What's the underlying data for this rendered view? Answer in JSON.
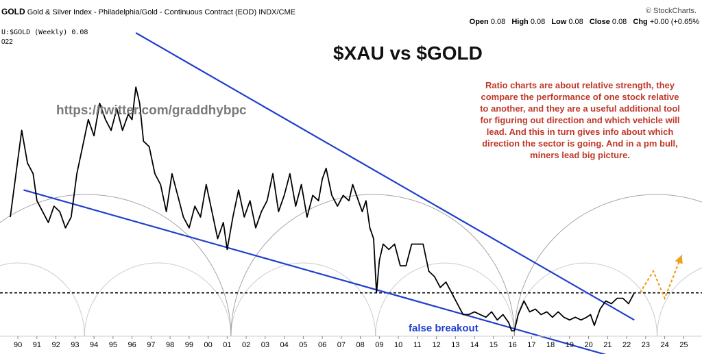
{
  "header": {
    "symbol": "GOLD",
    "description": "Gold & Silver Index - Philadelphia/Gold - Continuous Contract (EOD) INDX/CME",
    "brand": "© StockCharts.",
    "open_label": "Open",
    "open": "0.08",
    "high_label": "High",
    "high": "0.08",
    "low_label": "Low",
    "low": "0.08",
    "close_label": "Close",
    "close": "0.08",
    "chg_label": "Chg",
    "chg": "+0.00 (+0.65%",
    "series_line": "U:$GOLD (Weekly) 0.08",
    "date_fragment": "022"
  },
  "annotations": {
    "title": "$XAU vs $GOLD",
    "handle": "https://twitter.com/graddhybpc",
    "note": "Ratio charts are about relative strength, they compare the performance of one stock relative to another, and they are a useful additional tool for figuring out direction and which vehicle will lead. And this in turn gives info about which direction the sector is going. And in a pm bull, miners lead big picture.",
    "false_breakout": "false breakout"
  },
  "colors": {
    "price": "#000000",
    "trendline": "#1f3fcf",
    "cycle_arcs": "#9a9a9a",
    "note_text": "#c0392b",
    "projection": "#f0a020",
    "dashed_level": "#000000"
  },
  "chart_data": {
    "type": "line",
    "x_tick_labels": [
      "90",
      "91",
      "92",
      "93",
      "94",
      "95",
      "96",
      "97",
      "98",
      "99",
      "00",
      "01",
      "02",
      "03",
      "04",
      "05",
      "06",
      "07",
      "08",
      "09",
      "10",
      "11",
      "12",
      "13",
      "14",
      "15",
      "16",
      "17",
      "18",
      "19",
      "20",
      "21",
      "22",
      "23",
      "24",
      "25"
    ],
    "xlim": [
      1989.6,
      2025.6
    ],
    "ylim": [
      0.0,
      0.56
    ],
    "series": [
      {
        "x": [
          1989.6,
          1989.9,
          1990.2,
          1990.5,
          1990.8,
          1991.0,
          1991.3,
          1991.6,
          1991.9,
          1992.2,
          1992.5,
          1992.8,
          1993.1,
          1993.4,
          1993.7,
          1994.0,
          1994.3,
          1994.6,
          1994.9,
          1995.2,
          1995.5,
          1995.8,
          1996.0,
          1996.2,
          1996.4,
          1996.6,
          1996.9,
          1997.2,
          1997.5,
          1997.8,
          1998.1,
          1998.4,
          1998.7,
          1999.0,
          1999.3,
          1999.6,
          1999.9,
          2000.2,
          2000.5,
          2000.8,
          2001.0,
          2001.3,
          2001.6,
          2001.9,
          2002.2,
          2002.5,
          2002.8,
          2003.1,
          2003.4,
          2003.7,
          2004.0,
          2004.3,
          2004.6,
          2004.9,
          2005.2,
          2005.5,
          2005.8,
          2006.0,
          2006.2,
          2006.5,
          2006.8,
          2007.1,
          2007.4,
          2007.6,
          2007.9,
          2008.1,
          2008.3,
          2008.5,
          2008.7,
          2008.85,
          2009.0,
          2009.2,
          2009.5,
          2009.8,
          2010.1,
          2010.4,
          2010.7,
          2011.0,
          2011.3,
          2011.6,
          2011.9,
          2012.2,
          2012.5,
          2012.8,
          2013.1,
          2013.4,
          2013.7,
          2014.0,
          2014.3,
          2014.6,
          2014.9,
          2015.2,
          2015.5,
          2015.8,
          2015.95,
          2016.1,
          2016.3,
          2016.6,
          2016.9,
          2017.2,
          2017.5,
          2017.8,
          2018.1,
          2018.4,
          2018.7,
          2019.0,
          2019.3,
          2019.6,
          2019.9,
          2020.1,
          2020.3,
          2020.6,
          2020.9,
          2021.2,
          2021.5,
          2021.8,
          2022.1,
          2022.4
        ],
        "y": [
          0.22,
          0.3,
          0.38,
          0.32,
          0.3,
          0.25,
          0.23,
          0.21,
          0.24,
          0.23,
          0.2,
          0.22,
          0.3,
          0.35,
          0.4,
          0.37,
          0.43,
          0.4,
          0.38,
          0.42,
          0.38,
          0.41,
          0.4,
          0.46,
          0.43,
          0.36,
          0.35,
          0.3,
          0.28,
          0.23,
          0.3,
          0.26,
          0.22,
          0.2,
          0.24,
          0.22,
          0.28,
          0.23,
          0.18,
          0.21,
          0.16,
          0.22,
          0.27,
          0.22,
          0.25,
          0.2,
          0.23,
          0.25,
          0.3,
          0.23,
          0.26,
          0.3,
          0.24,
          0.28,
          0.22,
          0.26,
          0.25,
          0.29,
          0.31,
          0.26,
          0.24,
          0.26,
          0.25,
          0.28,
          0.25,
          0.23,
          0.25,
          0.2,
          0.18,
          0.08,
          0.14,
          0.17,
          0.16,
          0.17,
          0.13,
          0.13,
          0.17,
          0.17,
          0.17,
          0.12,
          0.11,
          0.09,
          0.1,
          0.08,
          0.06,
          0.04,
          0.04,
          0.045,
          0.04,
          0.035,
          0.045,
          0.03,
          0.04,
          0.025,
          0.01,
          0.01,
          0.04,
          0.065,
          0.045,
          0.05,
          0.04,
          0.045,
          0.035,
          0.045,
          0.035,
          0.03,
          0.035,
          0.03,
          0.035,
          0.04,
          0.02,
          0.05,
          0.065,
          0.06,
          0.07,
          0.07,
          0.06,
          0.08
        ]
      }
    ],
    "dashed_level": 0.08,
    "trendlines": [
      {
        "x": [
          1996.2,
          2022.4
        ],
        "y": [
          0.56,
          0.03
        ]
      },
      {
        "x": [
          1990.3,
          2021.5
        ],
        "y": [
          0.27,
          -0.04
        ]
      }
    ],
    "projection": {
      "x": [
        2022.7,
        2023.4,
        2024.0,
        2024.9
      ],
      "y": [
        0.08,
        0.12,
        0.07,
        0.15
      ]
    }
  }
}
